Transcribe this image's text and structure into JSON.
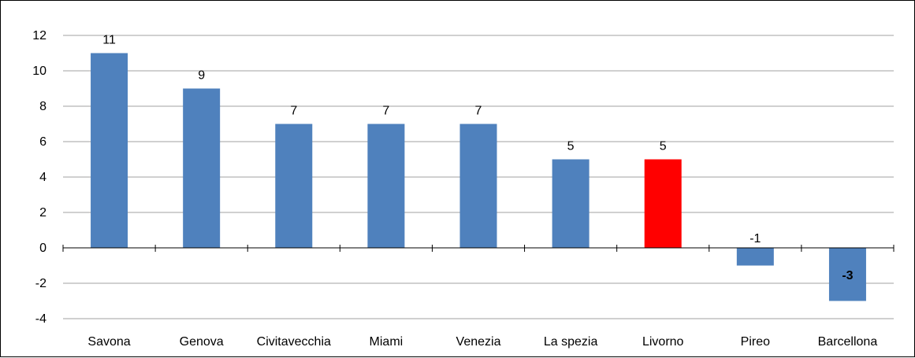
{
  "chart_data": {
    "type": "bar",
    "title": "",
    "xlabel": "",
    "ylabel": "",
    "categories": [
      "Savona",
      "Genova",
      "Civitavecchia",
      "Miami",
      "Venezia",
      "La spezia",
      "Livorno",
      "Pireo",
      "Barcellona"
    ],
    "values": [
      11,
      9,
      7,
      7,
      7,
      5,
      5,
      -1,
      -3
    ],
    "value_labels": [
      "11",
      "9",
      "7",
      "7",
      "7",
      "5",
      "5",
      "-1",
      "-3"
    ],
    "ylim": [
      -4,
      12
    ],
    "yticks": [
      -4,
      -2,
      0,
      2,
      4,
      6,
      8,
      10,
      12
    ],
    "ytick_labels": [
      "-4",
      "-2",
      "0",
      "2",
      "4",
      "6",
      "8",
      "10",
      "12"
    ],
    "grid": true,
    "legend": "none",
    "colors": {
      "default_bar": "#4F81BD",
      "highlight_bar": "#FF0000",
      "highlight_category": "Livorno",
      "gridline": "#A0A0A0",
      "axis": "#000000"
    }
  }
}
